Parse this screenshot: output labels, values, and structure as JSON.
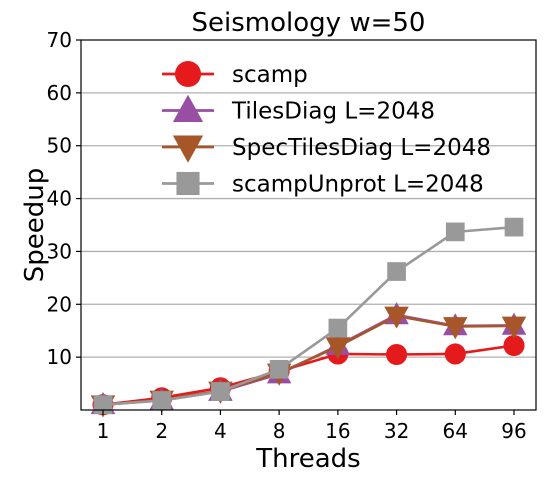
{
  "chart_data": {
    "type": "line",
    "title": "Seismology w=50",
    "xlabel": "Threads",
    "ylabel": "Speedup",
    "categories": [
      "1",
      "2",
      "4",
      "8",
      "16",
      "32",
      "64",
      "96"
    ],
    "ylim": [
      0,
      70
    ],
    "yticks": [
      10,
      20,
      30,
      40,
      50,
      60,
      70
    ],
    "grid": "horizontal",
    "legend_position": "upper-left",
    "series": [
      {
        "name": "scamp",
        "color": "#e41a1c",
        "marker": "circle",
        "values": [
          1.0,
          2.3,
          4.2,
          7.3,
          10.6,
          10.5,
          10.6,
          12.2
        ]
      },
      {
        "name": "TilesDiag L=2048",
        "color": "#984ea3",
        "marker": "triangle-up",
        "values": [
          1.0,
          1.8,
          3.5,
          6.8,
          12.2,
          18.0,
          15.9,
          16.0
        ]
      },
      {
        "name": "SpecTilesDiag L=2048",
        "color": "#a65628",
        "marker": "triangle-down",
        "values": [
          1.0,
          1.9,
          3.6,
          7.0,
          12.0,
          17.8,
          15.8,
          15.9
        ]
      },
      {
        "name": "scampUnprot L=2048",
        "color": "#999999",
        "marker": "square",
        "values": [
          1.0,
          1.8,
          3.5,
          7.7,
          15.5,
          26.2,
          33.7,
          34.6
        ]
      }
    ]
  }
}
